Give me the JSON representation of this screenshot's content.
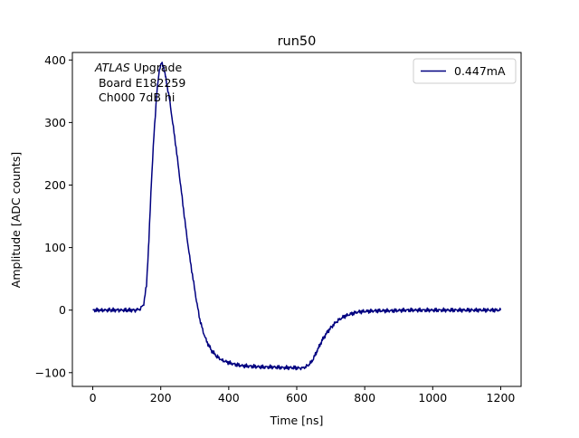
{
  "chart_data": {
    "type": "line",
    "title": "run50",
    "xlabel": "Time [ns]",
    "ylabel": "Amplitude [ADC counts]",
    "xlim": [
      -60,
      1260
    ],
    "ylim": [
      -122,
      412
    ],
    "xticks": [
      0,
      200,
      400,
      600,
      800,
      1000,
      1200
    ],
    "yticks": [
      -100,
      0,
      100,
      200,
      300,
      400
    ],
    "annotation": {
      "experiment": "ATLAS",
      "suffix": " Upgrade",
      "board": " Board E182259",
      "channel": " Ch000 7dB hi"
    },
    "legend": {
      "position": "top-right",
      "entries": [
        "0.447mA"
      ]
    },
    "series": [
      {
        "name": "0.447mA",
        "color": "#000080",
        "points": [
          [
            0,
            0
          ],
          [
            25,
            0
          ],
          [
            50,
            0
          ],
          [
            75,
            0
          ],
          [
            100,
            0
          ],
          [
            125,
            0
          ],
          [
            140,
            2
          ],
          [
            150,
            10
          ],
          [
            158,
            40
          ],
          [
            165,
            110
          ],
          [
            172,
            200
          ],
          [
            180,
            280
          ],
          [
            188,
            345
          ],
          [
            196,
            385
          ],
          [
            202,
            395
          ],
          [
            208,
            390
          ],
          [
            215,
            370
          ],
          [
            225,
            340
          ],
          [
            235,
            300
          ],
          [
            245,
            260
          ],
          [
            255,
            215
          ],
          [
            265,
            170
          ],
          [
            275,
            125
          ],
          [
            285,
            85
          ],
          [
            295,
            50
          ],
          [
            305,
            15
          ],
          [
            315,
            -15
          ],
          [
            325,
            -35
          ],
          [
            335,
            -50
          ],
          [
            350,
            -65
          ],
          [
            365,
            -74
          ],
          [
            380,
            -80
          ],
          [
            400,
            -84
          ],
          [
            420,
            -87
          ],
          [
            440,
            -89
          ],
          [
            470,
            -90
          ],
          [
            500,
            -91
          ],
          [
            530,
            -91
          ],
          [
            560,
            -92
          ],
          [
            590,
            -92
          ],
          [
            615,
            -93
          ],
          [
            630,
            -90
          ],
          [
            645,
            -82
          ],
          [
            660,
            -65
          ],
          [
            675,
            -48
          ],
          [
            690,
            -35
          ],
          [
            705,
            -25
          ],
          [
            720,
            -17
          ],
          [
            740,
            -10
          ],
          [
            760,
            -6
          ],
          [
            780,
            -3
          ],
          [
            800,
            -2
          ],
          [
            840,
            -1
          ],
          [
            880,
            -1
          ],
          [
            920,
            0
          ],
          [
            960,
            0
          ],
          [
            1000,
            0
          ],
          [
            1050,
            0
          ],
          [
            1100,
            0
          ],
          [
            1150,
            0
          ],
          [
            1200,
            0
          ]
        ]
      }
    ]
  }
}
